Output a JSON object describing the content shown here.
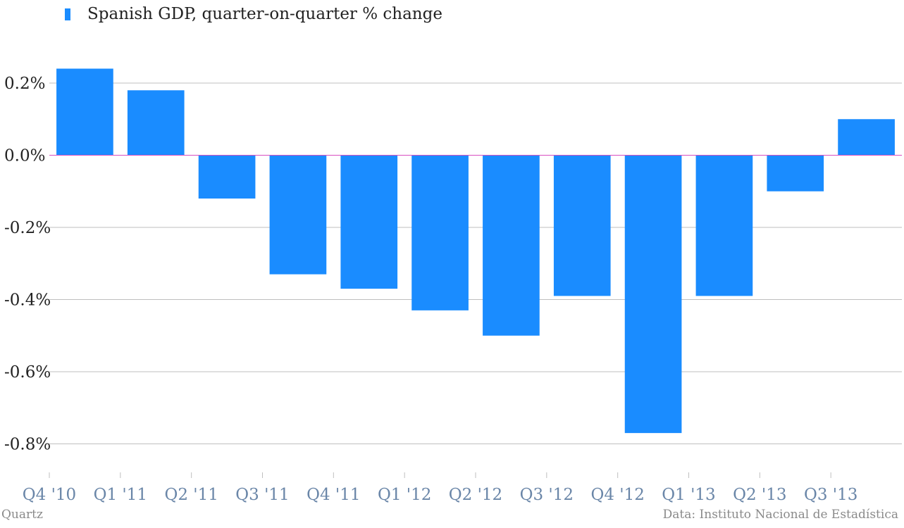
{
  "colors": {
    "bar": "#1a8cff",
    "zero_line": "#d94fc2",
    "grid": "#bfbfbf",
    "x_tick_text": "#6a86a8"
  },
  "chart_data": {
    "type": "bar",
    "categories": [
      "Q4 '10",
      "Q1 '11",
      "Q2 '11",
      "Q3 '11",
      "Q4 '11",
      "Q1 '12",
      "Q2 '12",
      "Q3 '12",
      "Q4 '12",
      "Q1 '13",
      "Q2 '13",
      "Q3 '13"
    ],
    "series": [
      {
        "name": "Spanish GDP, quarter-on-quarter % change",
        "values": [
          0.24,
          0.18,
          -0.12,
          -0.33,
          -0.37,
          -0.43,
          -0.5,
          -0.39,
          -0.77,
          -0.39,
          -0.1,
          0.1
        ]
      }
    ],
    "yticks": [
      0.2,
      0.0,
      -0.2,
      -0.4,
      -0.6,
      -0.8
    ],
    "ytick_labels": [
      "0.2%",
      "0.0%",
      "-0.2%",
      "-0.4%",
      "-0.6%",
      "-0.8%"
    ],
    "ylim": [
      -0.92,
      0.36
    ],
    "grid": true,
    "legend_position": "top-left"
  },
  "footer": {
    "credit": "Quartz",
    "source": "Data: Instituto Nacional de Estadística"
  }
}
